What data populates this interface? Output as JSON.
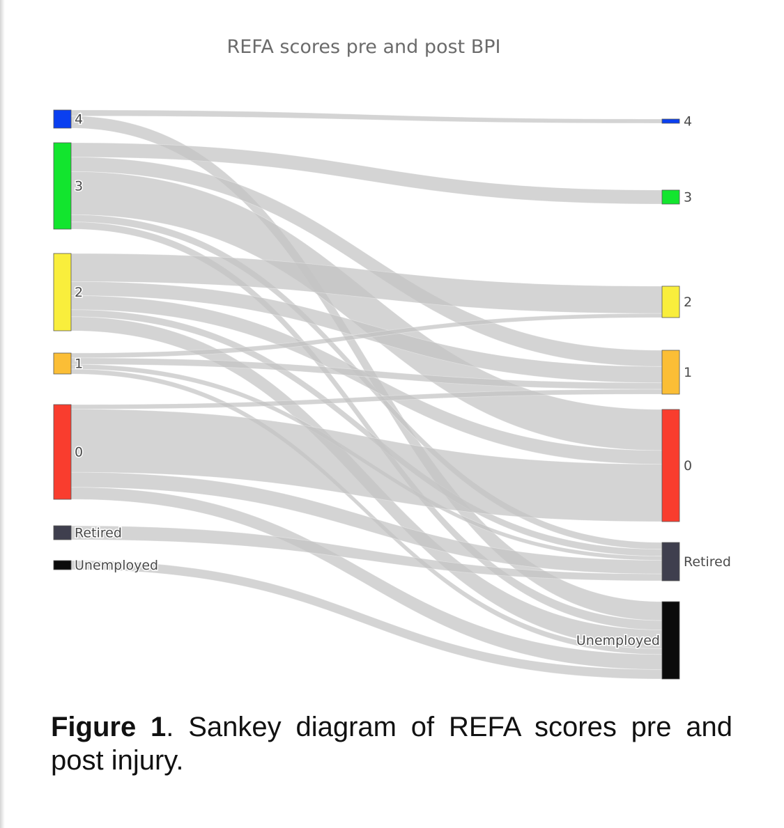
{
  "chart_data": {
    "type": "sankey",
    "title": "REFA scores pre and post BPI",
    "source_nodes": [
      {
        "id": "s4",
        "label": "4",
        "color": "#0a3ff0"
      },
      {
        "id": "s3",
        "label": "3",
        "color": "#12e52e"
      },
      {
        "id": "s2",
        "label": "2",
        "color": "#f9ee3c"
      },
      {
        "id": "s1",
        "label": "1",
        "color": "#fbbe36"
      },
      {
        "id": "s0",
        "label": "0",
        "color": "#f93d2e"
      },
      {
        "id": "sR",
        "label": "Retired",
        "color": "#3f3f4e"
      },
      {
        "id": "sU",
        "label": "Unemployed",
        "color": "#0b0b0b"
      }
    ],
    "target_nodes": [
      {
        "id": "t4",
        "label": "4",
        "color": "#0a3ff0"
      },
      {
        "id": "t3",
        "label": "3",
        "color": "#12e52e"
      },
      {
        "id": "t2",
        "label": "2",
        "color": "#f9ee3c"
      },
      {
        "id": "t1",
        "label": "1",
        "color": "#fbbe36"
      },
      {
        "id": "t0",
        "label": "0",
        "color": "#f93d2e"
      },
      {
        "id": "tR",
        "label": "Retired",
        "color": "#3f3f4e"
      },
      {
        "id": "tU",
        "label": "Unemployed",
        "color": "#0b0b0b"
      }
    ],
    "links": [
      {
        "source": "s4",
        "target": "t4",
        "value": 0.5
      },
      {
        "source": "s4",
        "target": "tU",
        "value": 1
      },
      {
        "source": "s3",
        "target": "t3",
        "value": 1
      },
      {
        "source": "s3",
        "target": "t1",
        "value": 1
      },
      {
        "source": "s3",
        "target": "t0",
        "value": 3
      },
      {
        "source": "s3",
        "target": "tR",
        "value": 0.5
      },
      {
        "source": "s3",
        "target": "tU",
        "value": 0.5
      },
      {
        "source": "s2",
        "target": "t2",
        "value": 2
      },
      {
        "source": "s2",
        "target": "t1",
        "value": 1
      },
      {
        "source": "s2",
        "target": "t0",
        "value": 1
      },
      {
        "source": "s2",
        "target": "tR",
        "value": 0.5
      },
      {
        "source": "s2",
        "target": "tU",
        "value": 1
      },
      {
        "source": "s1",
        "target": "t2",
        "value": 0.3
      },
      {
        "source": "s1",
        "target": "t1",
        "value": 0.4
      },
      {
        "source": "s1",
        "target": "tR",
        "value": 0.3
      },
      {
        "source": "s1",
        "target": "tU",
        "value": 0.3
      },
      {
        "source": "s0",
        "target": "t1",
        "value": 0.3
      },
      {
        "source": "s0",
        "target": "t0",
        "value": 4.2
      },
      {
        "source": "s0",
        "target": "tR",
        "value": 1
      },
      {
        "source": "s0",
        "target": "tU",
        "value": 0.8
      },
      {
        "source": "sR",
        "target": "tR",
        "value": 0.5
      },
      {
        "source": "sU",
        "target": "tU",
        "value": 0.5
      }
    ],
    "link_color": "#c4c4c4"
  },
  "caption": {
    "label": "Figure 1",
    "text": ". Sankey diagram of REFA scores pre and post injury."
  }
}
